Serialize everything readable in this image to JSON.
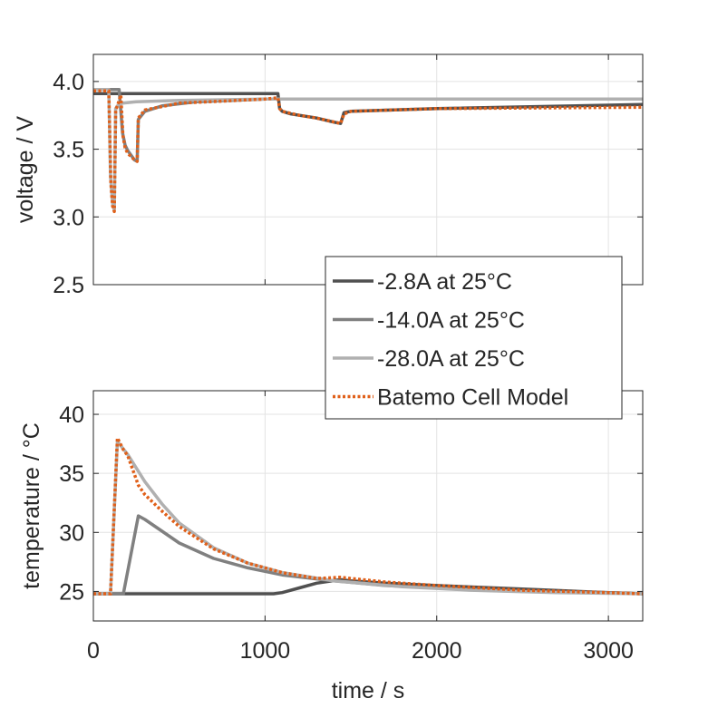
{
  "chart_data": [
    {
      "type": "line",
      "panel": "voltage",
      "ylabel": "voltage / V",
      "xlabel": "",
      "xlim": [
        0,
        3200
      ],
      "ylim": [
        2.5,
        4.2
      ],
      "xticks": [
        0,
        1000,
        2000,
        3000
      ],
      "yticks": [
        2.5,
        3.0,
        3.5,
        4.0
      ],
      "ytick_labels": [
        "2.5",
        "3.0",
        "3.5",
        "4.0"
      ],
      "grid": true,
      "series": [
        {
          "name": "-2.8A at 25°C",
          "color": "#505050",
          "x": [
            0,
            30,
            160,
            1075,
            1085,
            1100,
            1150,
            1200,
            1300,
            1400,
            1440,
            1460,
            1500,
            2000,
            3200
          ],
          "y": [
            3.91,
            3.91,
            3.91,
            3.91,
            3.8,
            3.78,
            3.76,
            3.75,
            3.73,
            3.7,
            3.69,
            3.77,
            3.78,
            3.8,
            3.83
          ]
        },
        {
          "name": "-14.0A at 25°C",
          "color": "#808080",
          "x": [
            0,
            150,
            170,
            185,
            200,
            240,
            255,
            262,
            300,
            400,
            600,
            1000,
            1080,
            1090,
            3200
          ],
          "y": [
            3.94,
            3.94,
            3.62,
            3.53,
            3.49,
            3.42,
            3.41,
            3.72,
            3.78,
            3.82,
            3.85,
            3.87,
            3.87,
            3.87,
            3.87
          ]
        },
        {
          "name": "-28.0A at 25°C",
          "color": "#b0b0b0",
          "x": [
            0,
            90,
            100,
            112,
            122,
            130,
            140,
            170,
            250,
            500,
            1000,
            1100,
            3200
          ],
          "y": [
            3.94,
            3.94,
            3.3,
            3.1,
            3.05,
            3.8,
            3.82,
            3.84,
            3.85,
            3.86,
            3.87,
            3.87,
            3.87
          ]
        },
        {
          "name": "Batemo Cell Model",
          "color": "#e0601a",
          "dash": true,
          "x": [
            0,
            90,
            102,
            112,
            122,
            130,
            140,
            160,
            172,
            185,
            200,
            240,
            255,
            262,
            300,
            500,
            1000,
            1075,
            1085,
            1100,
            1200,
            1300,
            1440,
            1460,
            1500,
            2000,
            3200
          ],
          "y": [
            3.93,
            3.93,
            3.25,
            3.08,
            3.04,
            3.79,
            3.82,
            3.9,
            3.6,
            3.51,
            3.47,
            3.42,
            3.41,
            3.73,
            3.79,
            3.84,
            3.87,
            3.88,
            3.8,
            3.78,
            3.75,
            3.73,
            3.69,
            3.76,
            3.78,
            3.8,
            3.81
          ]
        }
      ]
    },
    {
      "type": "line",
      "panel": "temperature",
      "ylabel": "temperature / °C",
      "xlabel": "time / s",
      "xlim": [
        0,
        3200
      ],
      "ylim": [
        22.5,
        42
      ],
      "xticks": [
        0,
        1000,
        2000,
        3000
      ],
      "xtick_labels": [
        "0",
        "1000",
        "2000",
        "3000"
      ],
      "yticks": [
        25,
        30,
        35,
        40
      ],
      "ytick_labels": [
        "25",
        "30",
        "35",
        "40"
      ],
      "grid": true,
      "series": [
        {
          "name": "-2.8A at 25°C",
          "color": "#505050",
          "x": [
            0,
            1050,
            1100,
            1200,
            1300,
            1440,
            1500,
            1700,
            2000,
            2500,
            3000,
            3200
          ],
          "y": [
            24.8,
            24.8,
            24.9,
            25.3,
            25.7,
            26.0,
            25.9,
            25.7,
            25.5,
            25.2,
            24.9,
            24.8
          ]
        },
        {
          "name": "-14.0A at 25°C",
          "color": "#808080",
          "x": [
            0,
            175,
            262,
            300,
            400,
            500,
            700,
            900,
            1100,
            1400,
            1700,
            2000,
            2500,
            3000,
            3200
          ],
          "y": [
            24.8,
            24.8,
            31.4,
            31.1,
            30.1,
            29.1,
            27.8,
            27.0,
            26.4,
            25.9,
            25.5,
            25.3,
            25.0,
            24.9,
            24.8
          ]
        },
        {
          "name": "-28.0A at 25°C",
          "color": "#b0b0b0",
          "x": [
            0,
            100,
            140,
            200,
            300,
            400,
            500,
            700,
            900,
            1100,
            1400,
            1800,
            2200,
            2700,
            3200
          ],
          "y": [
            24.8,
            24.8,
            37.7,
            36.6,
            34.3,
            32.4,
            30.8,
            28.7,
            27.4,
            26.6,
            25.9,
            25.4,
            25.1,
            24.9,
            24.8
          ]
        },
        {
          "name": "Batemo Cell Model",
          "color": "#e0601a",
          "dash": true,
          "x": [
            0,
            100,
            140,
            175,
            200,
            262,
            300,
            400,
            500,
            700,
            900,
            1100,
            1300,
            1440,
            1500,
            1700,
            2000,
            2500,
            3000,
            3200
          ],
          "y": [
            24.8,
            24.8,
            38.0,
            37.0,
            36.5,
            34.0,
            33.2,
            31.8,
            30.5,
            28.6,
            27.4,
            26.6,
            26.1,
            26.2,
            26.1,
            25.8,
            25.5,
            25.1,
            24.9,
            24.8
          ]
        }
      ]
    }
  ],
  "legend": {
    "placement": "between-panels-right",
    "entries": [
      "-2.8A at 25°C",
      "-14.0A at 25°C",
      "-28.0A at 25°C",
      "Batemo Cell Model"
    ]
  }
}
